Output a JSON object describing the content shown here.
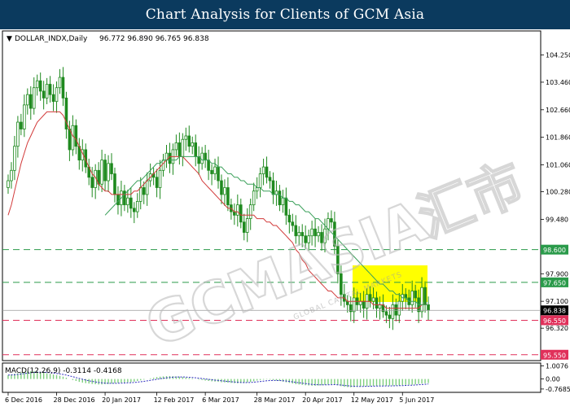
{
  "banner": {
    "title": "Chart Analysis for Clients of GCM Asia"
  },
  "instrument": {
    "symbol": "DOLLAR_INDX,Daily",
    "ohlc": "96.772 96.890 96.765 96.838"
  },
  "macd_label": "MACD(12,26,9) -0.3114 -0.4168",
  "watermark": {
    "text": "GCMASIA",
    "small": "GLOBAL CAPITAL MARKETS",
    "cn": "汇市"
  },
  "colors": {
    "banner_bg": "#0b3a5e",
    "candle": "#1f8a1f",
    "ma_fast": "#d23a3a",
    "ma_slow": "#3aa05a",
    "green_line": "#2a9a4a",
    "red_line": "#e0305a",
    "zone": "#ffff00",
    "macd_hist": "#7fcf7f",
    "macd_signal": "#3030c0"
  },
  "chart_data": {
    "type": "candlestick",
    "price_axis_ticks": [
      "104.250",
      "103.460",
      "102.660",
      "101.860",
      "101.060",
      "100.280",
      "99.480",
      "97.900",
      "97.100",
      "96.320"
    ],
    "macd_axis_ticks": [
      "1.0076",
      "0.00",
      "-0.7685"
    ],
    "date_ticks": [
      "6 Dec 2016",
      "28 Dec 2016",
      "20 Jan 2017",
      "12 Feb 2017",
      "6 Mar 2017",
      "28 Mar 2017",
      "20 Apr 2017",
      "12 May 2017",
      "5 Jun 2017"
    ],
    "levels": [
      {
        "value": 98.6,
        "label": "98.600",
        "color": "#2a9a4a"
      },
      {
        "value": 97.65,
        "label": "97.650",
        "color": "#2a9a4a"
      },
      {
        "value": 96.55,
        "label": "96.550",
        "color": "#e0305a"
      },
      {
        "value": 95.55,
        "label": "95.550",
        "color": "#e0305a"
      }
    ],
    "current_price": {
      "value": 96.838,
      "label": "96.838"
    },
    "yrange": [
      95.45,
      104.9
    ],
    "macd_range": [
      -0.9,
      1.1
    ],
    "close": [
      100.6,
      100.9,
      101.6,
      102.3,
      102.1,
      102.8,
      103.1,
      102.7,
      103.3,
      103.5,
      103.2,
      103.0,
      103.4,
      103.1,
      102.9,
      103.3,
      103.6,
      103.0,
      102.1,
      101.5,
      102.2,
      101.6,
      101.2,
      101.5,
      101.0,
      100.7,
      100.4,
      100.9,
      100.5,
      101.2,
      100.6,
      101.1,
      100.8,
      100.2,
      99.9,
      100.3,
      99.9,
      100.1,
      99.8,
      99.7,
      100.0,
      100.4,
      100.2,
      100.6,
      100.8,
      100.7,
      100.4,
      100.9,
      101.2,
      101.4,
      101.1,
      101.5,
      101.7,
      101.3,
      101.8,
      101.9,
      101.6,
      101.7,
      101.3,
      101.1,
      101.4,
      101.2,
      100.9,
      100.8,
      101.0,
      100.6,
      100.2,
      100.4,
      99.9,
      99.7,
      99.6,
      99.9,
      99.4,
      99.1,
      99.5,
      99.9,
      100.3,
      100.4,
      100.8,
      101.0,
      100.7,
      100.6,
      100.2,
      100.3,
      99.9,
      100.1,
      99.6,
      99.4,
      99.3,
      99.0,
      99.1,
      99.0,
      98.8,
      99.0,
      99.2,
      99.0,
      99.1,
      98.8,
      99.2,
      99.5,
      99.4,
      98.7,
      97.9,
      97.3,
      97.1,
      97.0,
      96.8,
      97.2,
      97.0,
      97.1,
      96.9,
      97.3,
      97.1,
      97.2,
      96.9,
      97.0,
      96.8,
      96.7,
      96.6,
      97.0,
      96.7,
      97.1,
      97.3,
      97.2,
      97.0,
      97.4,
      97.2,
      96.8,
      97.5,
      97.0,
      96.838
    ],
    "ma_fast": [
      99.6,
      99.9,
      100.3,
      100.7,
      101.1,
      101.4,
      101.7,
      101.9,
      102.1,
      102.3,
      102.4,
      102.5,
      102.6,
      102.6,
      102.6,
      102.6,
      102.6,
      102.5,
      102.3,
      102.1,
      101.9,
      101.8,
      101.6,
      101.4,
      101.2,
      101.0,
      100.8,
      100.7,
      100.5,
      100.4,
      100.3,
      100.3,
      100.2,
      100.2,
      100.2,
      100.2,
      100.2,
      100.2,
      100.2,
      100.3,
      100.3,
      100.4,
      100.5,
      100.6,
      100.7,
      100.8,
      100.9,
      101.0,
      101.1,
      101.2,
      101.3,
      101.3,
      101.3,
      101.3,
      101.3,
      101.2,
      101.1,
      101.0,
      100.9,
      100.8,
      100.6,
      100.5,
      100.4,
      100.3,
      100.2,
      100.1,
      100.0,
      99.9,
      99.8,
      99.8,
      99.7,
      99.7,
      99.6,
      99.6,
      99.6,
      99.6,
      99.6,
      99.5,
      99.5,
      99.5,
      99.4,
      99.4,
      99.3,
      99.3,
      99.2,
      99.1,
      99.0,
      98.9,
      98.8,
      98.6,
      98.5,
      98.3,
      98.2,
      98.0,
      97.9,
      97.8,
      97.7,
      97.6,
      97.5,
      97.4,
      97.4,
      97.3,
      97.2,
      97.2,
      97.2,
      97.1,
      97.1,
      97.1,
      97.1,
      97.1,
      97.1,
      97.1,
      97.1,
      97.0,
      97.0,
      97.0,
      97.0,
      96.9,
      96.9,
      96.9,
      96.9,
      96.9,
      96.9,
      96.9,
      96.9,
      96.9,
      96.9,
      96.9,
      97.0,
      97.0,
      97.0
    ],
    "ma_slow": [
      null,
      null,
      null,
      null,
      null,
      null,
      null,
      null,
      null,
      null,
      null,
      null,
      null,
      null,
      null,
      null,
      null,
      null,
      null,
      null,
      null,
      null,
      null,
      null,
      null,
      null,
      null,
      null,
      null,
      null,
      99.6,
      99.7,
      99.8,
      99.9,
      100.0,
      100.1,
      100.2,
      100.3,
      100.4,
      100.5,
      100.6,
      100.6,
      100.7,
      100.8,
      100.9,
      101.0,
      101.1,
      101.1,
      101.2,
      101.2,
      101.2,
      101.2,
      101.2,
      101.3,
      101.3,
      101.3,
      101.3,
      101.3,
      101.3,
      101.3,
      101.2,
      101.2,
      101.2,
      101.1,
      101.1,
      101.0,
      101.0,
      100.9,
      100.8,
      100.8,
      100.7,
      100.7,
      100.6,
      100.6,
      100.5,
      100.5,
      100.5,
      100.4,
      100.4,
      100.3,
      100.3,
      100.3,
      100.2,
      100.2,
      100.2,
      100.1,
      100.1,
      100.0,
      100.0,
      99.9,
      99.9,
      99.8,
      99.7,
      99.7,
      99.6,
      99.5,
      99.5,
      99.4,
      99.3,
      99.2,
      99.1,
      99.0,
      98.9,
      98.8,
      98.7,
      98.6,
      98.5,
      98.4,
      98.3,
      98.2,
      98.1,
      98.0,
      97.9,
      97.8,
      97.7,
      97.6,
      97.6,
      97.5,
      97.4,
      97.4,
      97.3,
      97.3,
      97.2,
      97.2,
      97.1,
      97.1,
      97.1,
      97.0,
      97.0,
      97.0,
      97.0
    ],
    "macd_hist": [
      0.3,
      0.35,
      0.4,
      0.45,
      0.5,
      0.55,
      0.58,
      0.6,
      0.6,
      0.58,
      0.55,
      0.5,
      0.45,
      0.4,
      0.35,
      0.3,
      0.25,
      0.18,
      0.1,
      0.0,
      -0.08,
      -0.15,
      -0.22,
      -0.28,
      -0.32,
      -0.35,
      -0.38,
      -0.4,
      -0.42,
      -0.42,
      -0.4,
      -0.38,
      -0.35,
      -0.32,
      -0.3,
      -0.28,
      -0.26,
      -0.25,
      -0.24,
      -0.2,
      -0.15,
      -0.1,
      -0.05,
      0.0,
      0.05,
      0.1,
      0.15,
      0.18,
      0.2,
      0.22,
      0.23,
      0.22,
      0.2,
      0.18,
      0.15,
      0.12,
      0.08,
      0.05,
      0.0,
      -0.05,
      -0.08,
      -0.12,
      -0.15,
      -0.18,
      -0.2,
      -0.22,
      -0.25,
      -0.26,
      -0.28,
      -0.3,
      -0.32,
      -0.33,
      -0.32,
      -0.3,
      -0.26,
      -0.22,
      -0.18,
      -0.12,
      -0.08,
      -0.05,
      -0.03,
      -0.05,
      -0.08,
      -0.12,
      -0.15,
      -0.2,
      -0.25,
      -0.3,
      -0.35,
      -0.4,
      -0.42,
      -0.45,
      -0.48,
      -0.5,
      -0.52,
      -0.52,
      -0.5,
      -0.48,
      -0.45,
      -0.42,
      -0.4,
      -0.42,
      -0.48,
      -0.55,
      -0.6,
      -0.62,
      -0.64,
      -0.62,
      -0.6,
      -0.58,
      -0.56,
      -0.55,
      -0.54,
      -0.53,
      -0.52,
      -0.52,
      -0.52,
      -0.52,
      -0.51,
      -0.5,
      -0.5,
      -0.49,
      -0.47,
      -0.45,
      -0.44,
      -0.44,
      -0.42,
      -0.38,
      -0.35,
      -0.33,
      -0.31
    ]
  }
}
